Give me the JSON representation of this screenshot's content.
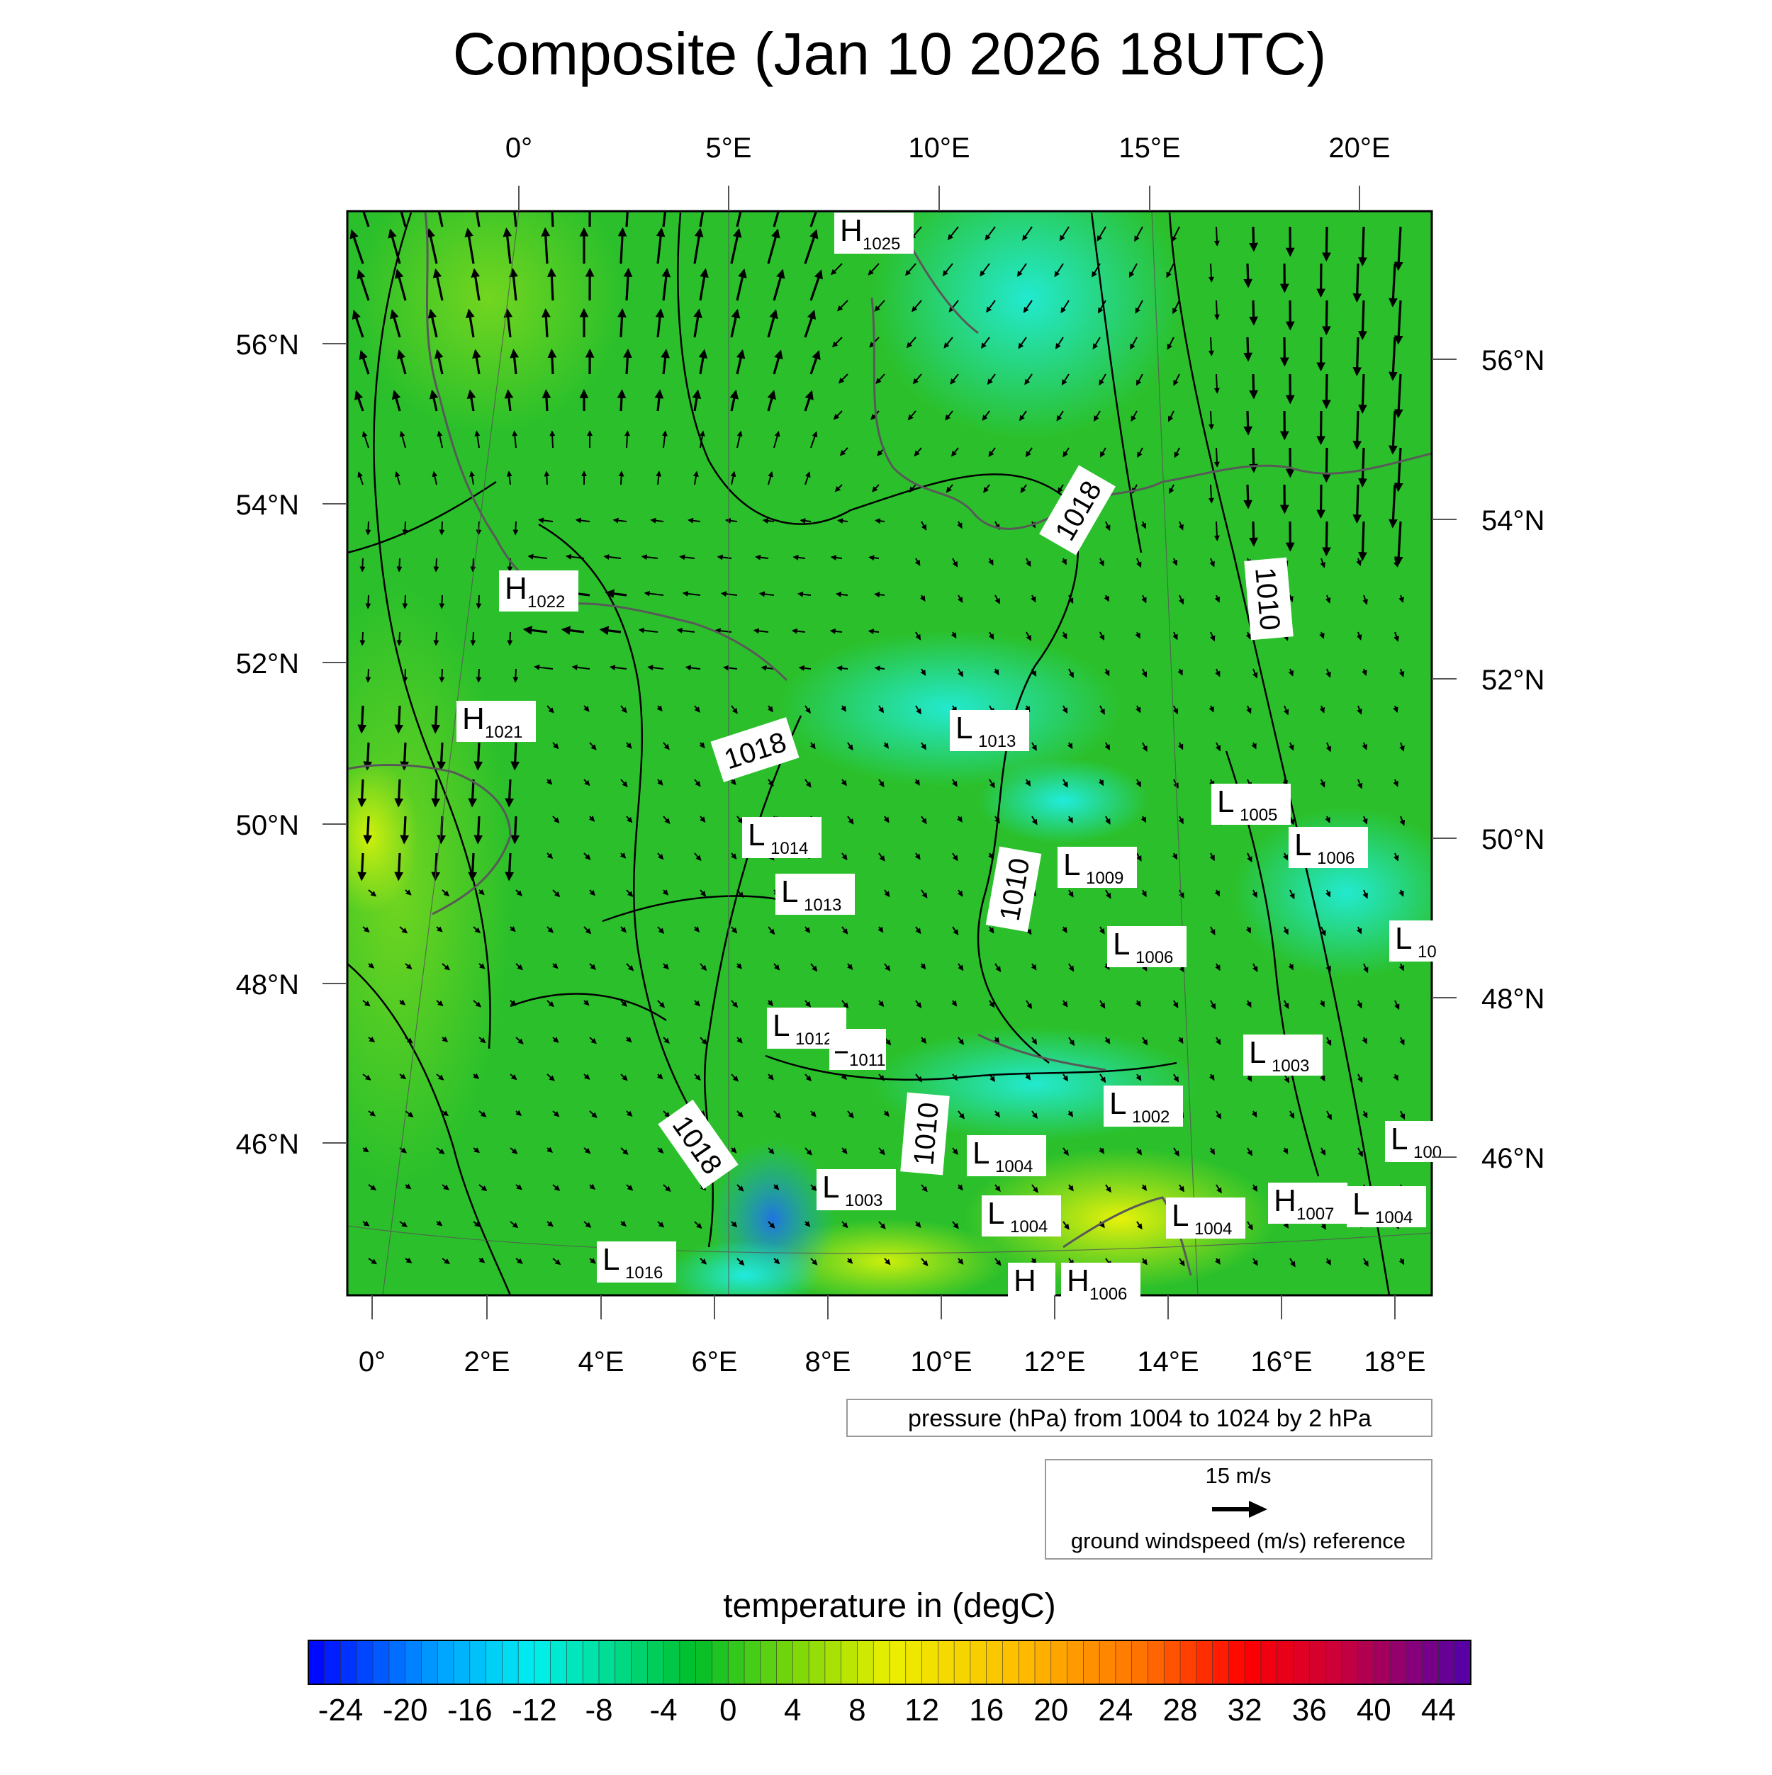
{
  "title": "Composite (Jan 10 2026 18UTC)",
  "top_lon_labels": [
    "0°",
    "5°E",
    "10°E",
    "15°E",
    "20°E"
  ],
  "bottom_lon_labels": [
    "0°",
    "2°E",
    "4°E",
    "6°E",
    "8°E",
    "10°E",
    "12°E",
    "14°E",
    "16°E",
    "18°E"
  ],
  "left_lat_labels": [
    "56°N",
    "54°N",
    "52°N",
    "50°N",
    "48°N",
    "46°N"
  ],
  "right_lat_labels": [
    "56°N",
    "54°N",
    "52°N",
    "50°N",
    "48°N",
    "46°N"
  ],
  "isobar_labels": [
    "1018",
    "1010",
    "1018",
    "1010",
    "1018",
    "1010"
  ],
  "pressure_centers": [
    {
      "kind": "H",
      "value": "1025"
    },
    {
      "kind": "H",
      "value": "1022"
    },
    {
      "kind": "H",
      "value": "1021"
    },
    {
      "kind": "L",
      "value": "1013"
    },
    {
      "kind": "L",
      "value": "1014"
    },
    {
      "kind": "L",
      "value": "1013"
    },
    {
      "kind": "L",
      "value": "1009"
    },
    {
      "kind": "L",
      "value": "1006"
    },
    {
      "kind": "L",
      "value": "1005"
    },
    {
      "kind": "L",
      "value": "1006"
    },
    {
      "kind": "L",
      "value": "10"
    },
    {
      "kind": "L",
      "value": "1012"
    },
    {
      "kind": "",
      "value": "1011"
    },
    {
      "kind": "L",
      "value": "1003"
    },
    {
      "kind": "L",
      "value": "1002"
    },
    {
      "kind": "L",
      "value": "100"
    },
    {
      "kind": "L",
      "value": "1004"
    },
    {
      "kind": "L",
      "value": "1003"
    },
    {
      "kind": "H",
      "value": "1007"
    },
    {
      "kind": "L",
      "value": "1004"
    },
    {
      "kind": "L",
      "value": "1004"
    },
    {
      "kind": "L",
      "value": "1004"
    },
    {
      "kind": "L",
      "value": "1016"
    },
    {
      "kind": "H",
      "value": "1006"
    },
    {
      "kind": "H",
      "value": ""
    }
  ],
  "pressure_legend": "pressure (hPa) from 1004 to 1024 by 2 hPa",
  "wind_reference": {
    "speed_label": "15 m/s",
    "caption": "ground windspeed (m/s) reference"
  },
  "colorbar": {
    "title": "temperature in (degC)",
    "tick_labels": [
      "-24",
      "-20",
      "-16",
      "-12",
      "-8",
      "-4",
      "0",
      "4",
      "8",
      "12",
      "16",
      "20",
      "24",
      "28",
      "32",
      "36",
      "40",
      "44"
    ],
    "min": -26,
    "max": 46,
    "step": 1
  },
  "colors": {
    "land_green": "#2bc02b",
    "sea_cyan": "#2fe6c6",
    "warm_yellow": "#b7ea1a",
    "cold_blue": "#1e66ff"
  }
}
